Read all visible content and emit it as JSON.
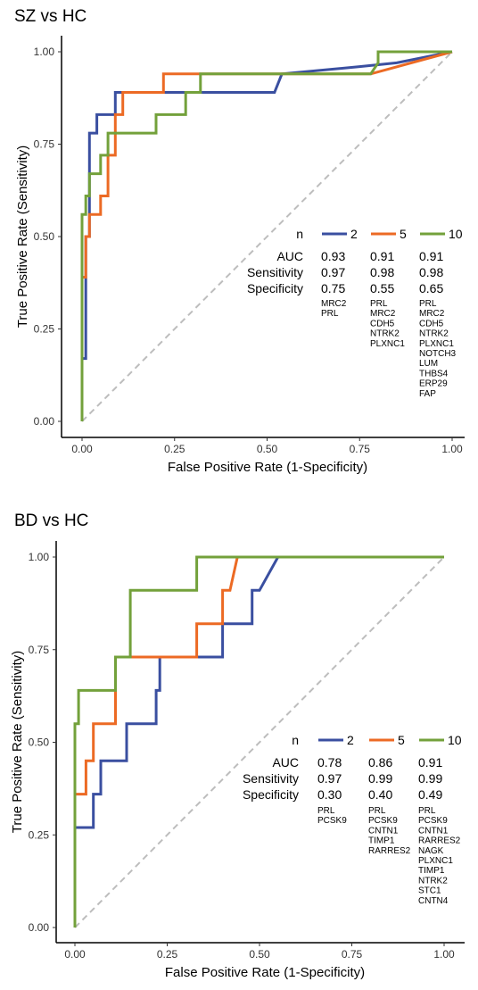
{
  "chart_data": [
    {
      "type": "line",
      "title": "SZ vs HC",
      "xlabel": "False Positive Rate (1-Specificity)",
      "ylabel": "True Positive Rate (Sensitivity)",
      "xlim": [
        0,
        1
      ],
      "ylim": [
        0,
        1
      ],
      "xticks": [
        "0.00",
        "0.25",
        "0.50",
        "0.75",
        "1.00"
      ],
      "yticks": [
        "0.00",
        "0.25",
        "0.50",
        "0.75",
        "1.00"
      ],
      "grid": false,
      "diagonal_reference": true,
      "legend": {
        "placement": "right-center",
        "header": "n",
        "row_labels": [
          "AUC",
          "Sensitivity",
          "Specificity"
        ]
      },
      "series": [
        {
          "name": "2",
          "color": "#3a4fa0",
          "auc": "0.93",
          "sensitivity": "0.97",
          "specificity": "0.75",
          "genes": [
            "MRC2",
            "PRL"
          ],
          "x": [
            0,
            0.01,
            0.01,
            0.02,
            0.02,
            0.04,
            0.04,
            0.06,
            0.06,
            0.09,
            0.09,
            0.52,
            0.54,
            0.75,
            0.85,
            1.0
          ],
          "y": [
            0.17,
            0.17,
            0.5,
            0.5,
            0.78,
            0.78,
            0.83,
            0.83,
            0.83,
            0.83,
            0.89,
            0.89,
            0.94,
            0.96,
            0.97,
            1.0
          ]
        },
        {
          "name": "5",
          "color": "#ec6a24",
          "auc": "0.91",
          "sensitivity": "0.98",
          "specificity": "0.55",
          "genes": [
            "PRL",
            "MRC2",
            "CDH5",
            "NTRK2",
            "PLXNC1"
          ],
          "x": [
            0,
            0.01,
            0.01,
            0.02,
            0.02,
            0.04,
            0.04,
            0.05,
            0.05,
            0.07,
            0.07,
            0.09,
            0.09,
            0.11,
            0.11,
            0.22,
            0.22,
            0.78,
            1.0
          ],
          "y": [
            0.39,
            0.39,
            0.5,
            0.5,
            0.56,
            0.56,
            0.56,
            0.56,
            0.61,
            0.61,
            0.72,
            0.72,
            0.83,
            0.83,
            0.89,
            0.89,
            0.94,
            0.94,
            1.0
          ]
        },
        {
          "name": "10",
          "color": "#73a13b",
          "auc": "0.91",
          "sensitivity": "0.98",
          "specificity": "0.65",
          "genes": [
            "PRL",
            "MRC2",
            "CDH5",
            "NTRK2",
            "PLXNC1",
            "NOTCH3",
            "LUM",
            "THBS4",
            "ERP29",
            "FAP"
          ],
          "x": [
            0,
            0,
            0.01,
            0.01,
            0.02,
            0.02,
            0.05,
            0.05,
            0.07,
            0.07,
            0.2,
            0.2,
            0.28,
            0.28,
            0.32,
            0.32,
            0.78,
            0.8,
            0.8,
            1.0
          ],
          "y": [
            0,
            0.56,
            0.56,
            0.61,
            0.61,
            0.67,
            0.67,
            0.72,
            0.72,
            0.78,
            0.78,
            0.83,
            0.83,
            0.89,
            0.89,
            0.94,
            0.94,
            0.97,
            1.0,
            1.0
          ]
        }
      ]
    },
    {
      "type": "line",
      "title": "BD vs HC",
      "xlabel": "False Positive Rate (1-Specificity)",
      "ylabel": "True Positive Rate (Sensitivity)",
      "xlim": [
        0,
        1
      ],
      "ylim": [
        0,
        1
      ],
      "xticks": [
        "0.00",
        "0.25",
        "0.50",
        "0.75",
        "1.00"
      ],
      "yticks": [
        "0.00",
        "0.25",
        "0.50",
        "0.75",
        "1.00"
      ],
      "grid": false,
      "diagonal_reference": true,
      "legend": {
        "placement": "right-center",
        "header": "n",
        "row_labels": [
          "AUC",
          "Sensitivity",
          "Specificity"
        ]
      },
      "series": [
        {
          "name": "2",
          "color": "#3a4fa0",
          "auc": "0.78",
          "sensitivity": "0.97",
          "specificity": "0.30",
          "genes": [
            "PRL",
            "PCSK9"
          ],
          "x": [
            0,
            0.01,
            0.01,
            0.05,
            0.05,
            0.07,
            0.07,
            0.11,
            0.11,
            0.14,
            0.14,
            0.22,
            0.22,
            0.23,
            0.23,
            0.4,
            0.4,
            0.48,
            0.48,
            0.5,
            0.55,
            1.0
          ],
          "y": [
            0.27,
            0.27,
            0.27,
            0.27,
            0.36,
            0.36,
            0.45,
            0.45,
            0.45,
            0.45,
            0.55,
            0.55,
            0.64,
            0.64,
            0.73,
            0.73,
            0.82,
            0.82,
            0.91,
            0.91,
            1.0,
            1.0
          ]
        },
        {
          "name": "5",
          "color": "#ec6a24",
          "auc": "0.86",
          "sensitivity": "0.99",
          "specificity": "0.40",
          "genes": [
            "PRL",
            "PCSK9",
            "CNTN1",
            "TIMP1",
            "RARRES2"
          ],
          "x": [
            0,
            0.01,
            0.01,
            0.03,
            0.03,
            0.05,
            0.05,
            0.11,
            0.11,
            0.33,
            0.33,
            0.4,
            0.4,
            0.42,
            0.42,
            0.44,
            1.0
          ],
          "y": [
            0.36,
            0.36,
            0.36,
            0.36,
            0.45,
            0.45,
            0.55,
            0.55,
            0.73,
            0.73,
            0.82,
            0.82,
            0.91,
            0.91,
            0.91,
            1.0,
            1.0
          ]
        },
        {
          "name": "10",
          "color": "#73a13b",
          "auc": "0.91",
          "sensitivity": "0.99",
          "specificity": "0.49",
          "genes": [
            "PRL",
            "PCSK9",
            "CNTN1",
            "RARRES2",
            "NAGK",
            "PLXNC1",
            "TIMP1",
            "NTRK2",
            "STC1",
            "CNTN4"
          ],
          "x": [
            0,
            0,
            0.01,
            0.01,
            0.11,
            0.11,
            0.15,
            0.15,
            0.33,
            0.33,
            1.0
          ],
          "y": [
            0,
            0.55,
            0.55,
            0.64,
            0.64,
            0.73,
            0.73,
            0.91,
            0.91,
            1.0,
            1.0
          ]
        }
      ]
    }
  ]
}
